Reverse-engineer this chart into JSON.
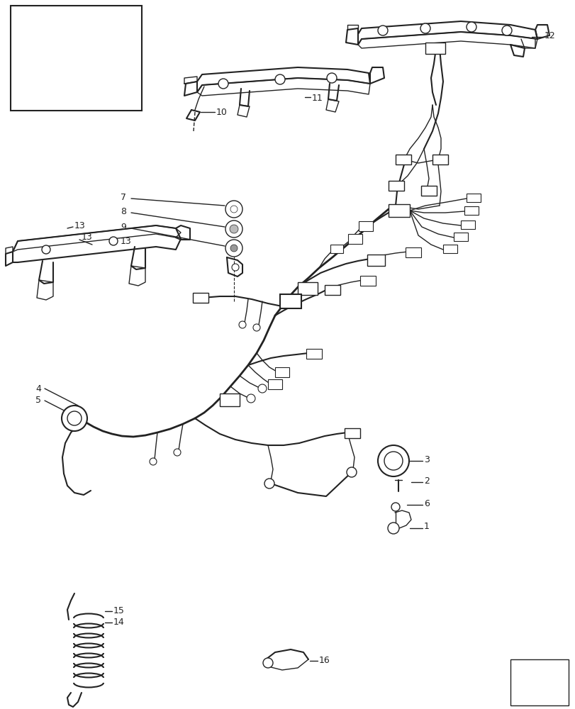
{
  "bg_color": "#ffffff",
  "line_color": "#222222",
  "fig_width": 8.12,
  "fig_height": 10.0,
  "dpi": 100
}
